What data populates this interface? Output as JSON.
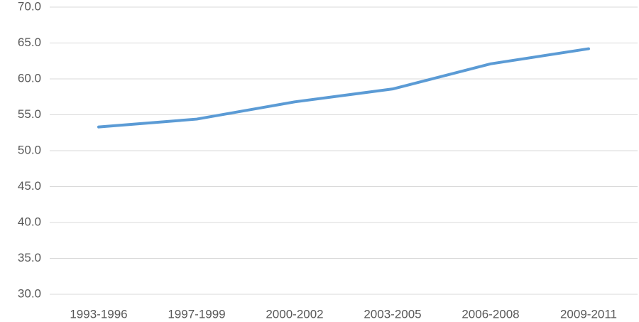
{
  "chart_data": {
    "type": "line",
    "categories": [
      "1993-1996",
      "1997-1999",
      "2000-2002",
      "2003-2005",
      "2006-2008",
      "2009-2011"
    ],
    "values": [
      53.3,
      54.4,
      56.8,
      58.6,
      62.1,
      64.2
    ],
    "color": "#5b9bd5",
    "ylim": [
      30,
      70
    ],
    "yticks": [
      {
        "value": 30,
        "label": "30.0"
      },
      {
        "value": 35,
        "label": "35.0"
      },
      {
        "value": 40,
        "label": "40.0"
      },
      {
        "value": 45,
        "label": "45.0"
      },
      {
        "value": 50,
        "label": "50.0"
      },
      {
        "value": 55,
        "label": "55.0"
      },
      {
        "value": 60,
        "label": "60.0"
      },
      {
        "value": 65,
        "label": "65.0"
      },
      {
        "value": 70,
        "label": "70.0"
      }
    ],
    "grid": true
  }
}
